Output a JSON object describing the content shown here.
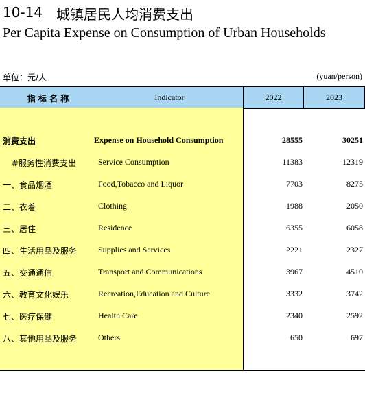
{
  "header": {
    "code": "10-14",
    "title_cn": "城镇居民人均消费支出",
    "title_en": "Per Capita Expense on Consumption of Urban Households",
    "unit_cn": "单位：元/人",
    "unit_en": "(yuan/person)"
  },
  "table": {
    "columns": [
      "指 标 名 称",
      "Indicator",
      "2022",
      "2023"
    ],
    "rows": [
      [
        "消费支出",
        "Expense on Household Consumption",
        28555,
        30251
      ],
      [
        "#服务性消费支出",
        "Service Consumption",
        11383,
        12319
      ],
      [
        "一、食品烟酒",
        "Food,Tobacco and Liquor",
        7703,
        8275
      ],
      [
        "二、衣着",
        "Clothing",
        1988,
        2050
      ],
      [
        "三、居住",
        "Residence",
        6355,
        6058
      ],
      [
        "四、生活用品及服务",
        "Supplies and Services",
        2221,
        2327
      ],
      [
        "五、交通通信",
        "Transport and Communications",
        3967,
        4510
      ],
      [
        "六、教育文化娱乐",
        "Recreation,Education and Culture",
        3332,
        3742
      ],
      [
        "七、医疗保健",
        "Health Care",
        2340,
        2592
      ],
      [
        "八、其他用品及服务",
        "Others",
        650,
        697
      ]
    ]
  }
}
